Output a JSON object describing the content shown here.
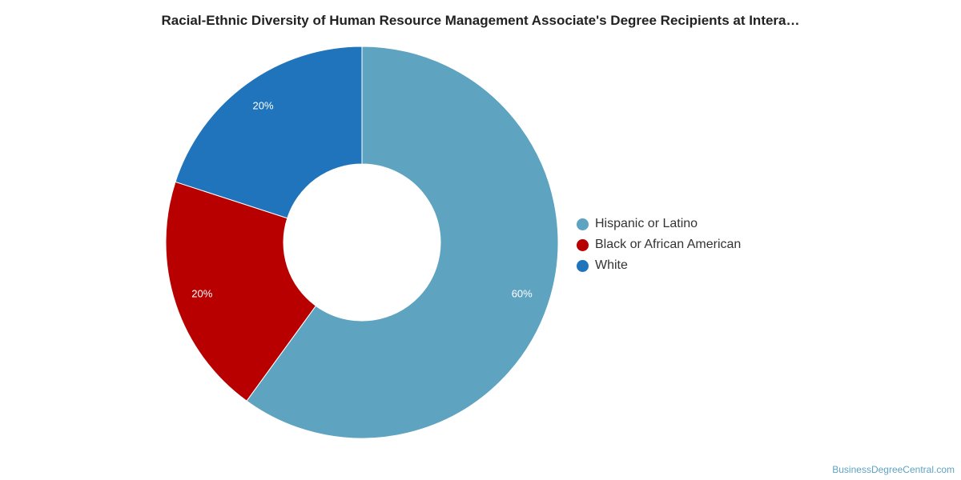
{
  "chart_data": {
    "type": "pie",
    "title": "Racial-Ethnic Diversity of Human Resource Management Associate's Degree Recipients at Intera…",
    "donut": true,
    "categories": [
      "Hispanic or Latino",
      "Black or African American",
      "White"
    ],
    "values": [
      60,
      20,
      20
    ],
    "value_labels": [
      "60%",
      "20%",
      "20%"
    ],
    "colors": [
      "#5ea3c0",
      "#b90000",
      "#1f74bb"
    ],
    "legend_position": "right"
  },
  "legend": {
    "items": [
      {
        "label": "Hispanic or Latino",
        "color": "#5ea3c0"
      },
      {
        "label": "Black or African American",
        "color": "#b90000"
      },
      {
        "label": "White",
        "color": "#1f74bb"
      }
    ]
  },
  "watermark": "BusinessDegreeCentral.com"
}
